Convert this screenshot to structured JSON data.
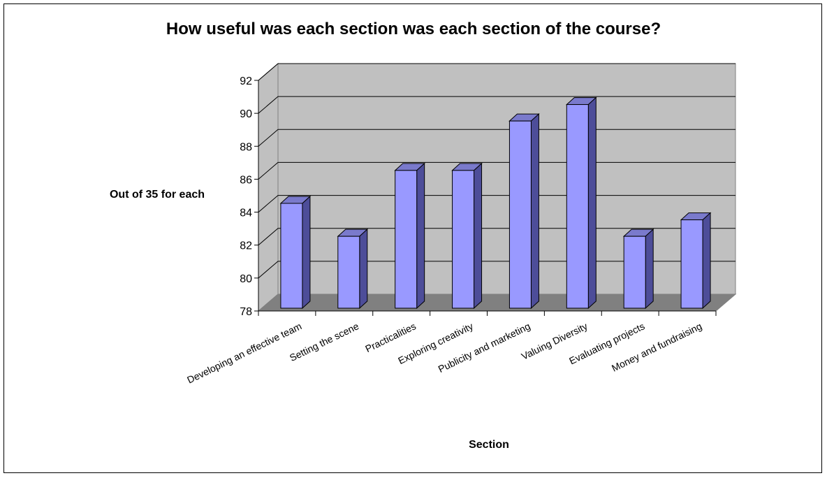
{
  "chart_data": {
    "type": "bar",
    "title": "How useful was each section was each section of the course?",
    "xlabel": "Section",
    "ylabel": "Out of 35 for each",
    "categories": [
      "Developing an effective team",
      "Setting the scene",
      "Practicalities",
      "Exploring creativity",
      "Publicity and marketing",
      "Valuing Diversity",
      "Evaluating projects",
      "Money and fundraising"
    ],
    "values": [
      85,
      83,
      87,
      87,
      90,
      91,
      83,
      84
    ],
    "ylim": [
      78,
      92
    ],
    "yticks": [
      78,
      80,
      82,
      84,
      86,
      88,
      90,
      92
    ],
    "grid": true,
    "legend": "none",
    "colors": {
      "bar_front": "#9999ff",
      "bar_side": "#4d4d99",
      "bar_top": "#7a7acc",
      "wall": "#c0c0c0",
      "floor": "#808080"
    }
  }
}
